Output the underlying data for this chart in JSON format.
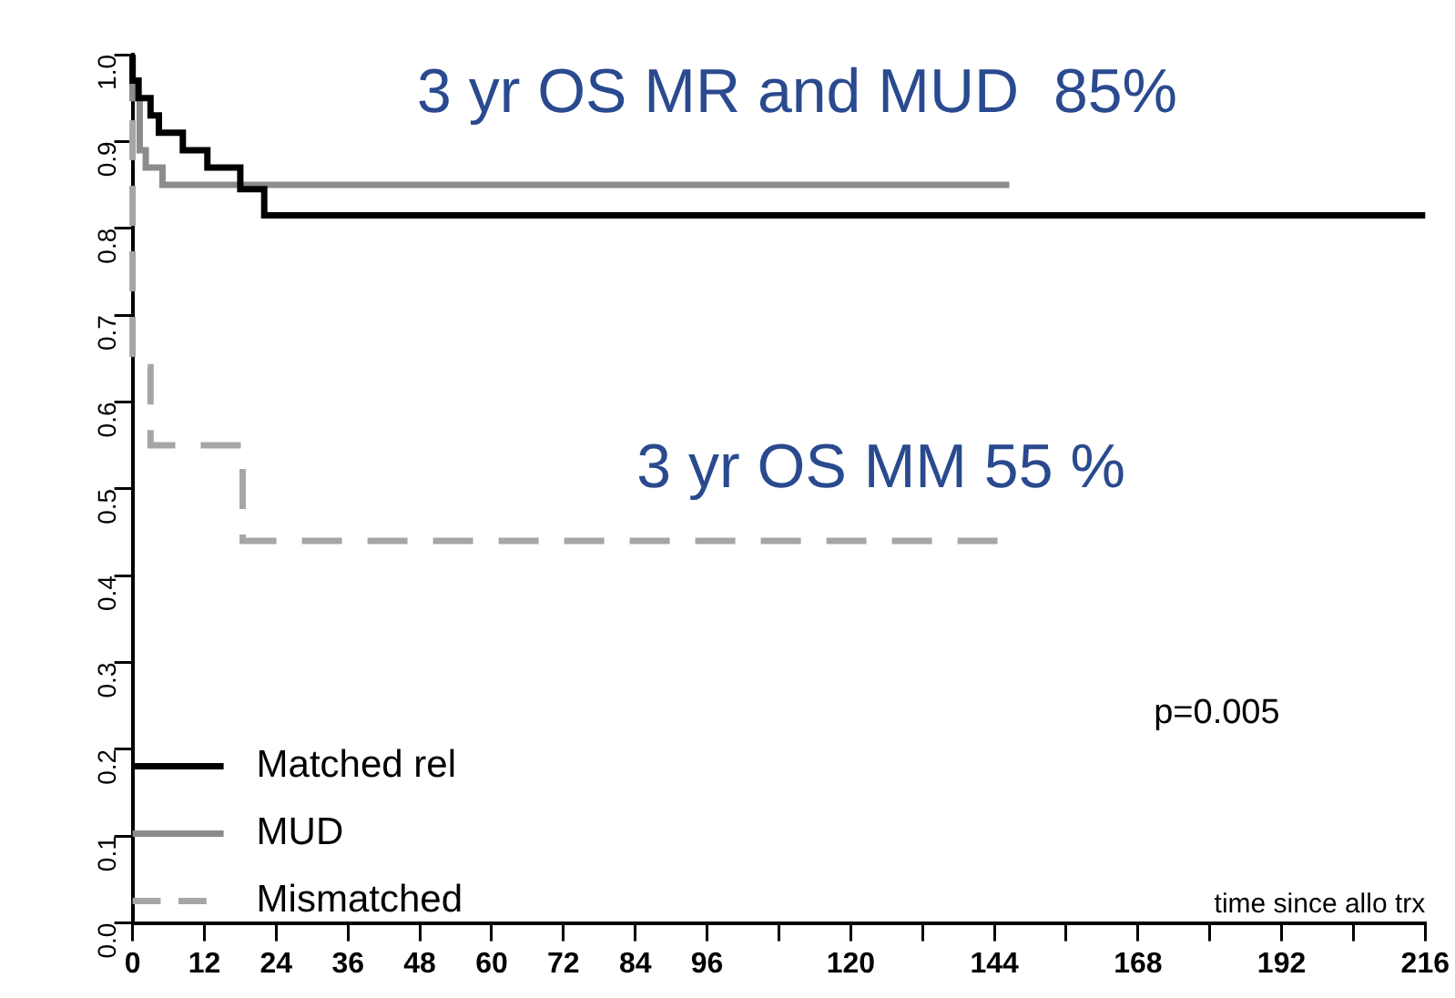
{
  "chart_data": {
    "type": "step",
    "xlabel": "time since allo trx",
    "xlim": [
      0,
      216
    ],
    "xticks": [
      0,
      12,
      24,
      36,
      48,
      60,
      72,
      84,
      96,
      {
        "value": 108,
        "label": null
      },
      120,
      {
        "value": 132,
        "label": null
      },
      144,
      {
        "value": 156,
        "label": null
      },
      168,
      {
        "value": 180,
        "label": null
      },
      192,
      {
        "value": 204,
        "label": null
      },
      216
    ],
    "ylim": [
      0,
      1
    ],
    "yticks": [
      {
        "value": 0,
        "label": "0.0"
      },
      0.1,
      0.2,
      0.3,
      0.4,
      0.5,
      0.6,
      0.7,
      0.8,
      0.9,
      {
        "value": 1,
        "label": "1.0"
      }
    ],
    "grid": false,
    "legend": "bottom left",
    "marker": "none",
    "series": [
      {
        "name": "Matched rel",
        "color": "#000000",
        "line_style": "solid",
        "x": [
          0,
          1,
          3,
          4.4,
          8.4,
          12.5,
          18,
          22,
          44,
          216
        ],
        "values": [
          1,
          0.97,
          0.95,
          0.93,
          0.91,
          0.89,
          0.87,
          0.845,
          0.815,
          0.815
        ]
      },
      {
        "name": "MUD",
        "color": "#8c8c8c",
        "line_style": "solid",
        "x": [
          0,
          1.2,
          2.2,
          5,
          8.4,
          146.5
        ],
        "values": [
          1,
          0.95,
          0.89,
          0.87,
          0.85,
          0.85
        ]
      },
      {
        "name": "Mismatched",
        "color": "#a6a6a6",
        "line_style": "dashed",
        "x": [
          0,
          3,
          18.4,
          53,
          145
        ],
        "values": [
          1,
          0.64,
          0.55,
          0.44,
          0.44
        ]
      }
    ],
    "annotations": [
      "3 yr OS MR and MUD  85%",
      "3 yr OS MM 55 %",
      "p=0.005"
    ]
  }
}
